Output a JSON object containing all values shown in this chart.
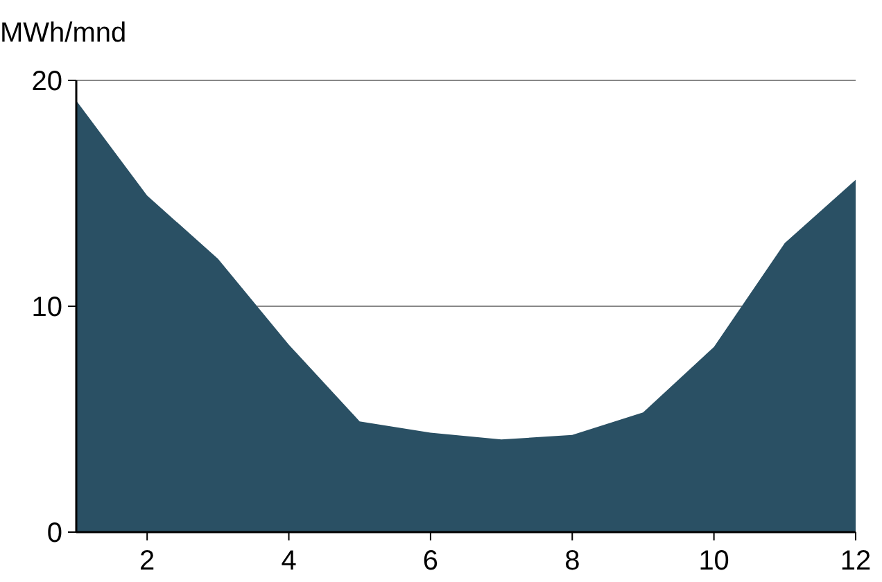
{
  "chart_data": {
    "type": "area",
    "ylabel": "MWh/mnd",
    "x": [
      1,
      2,
      3,
      4,
      5,
      6,
      7,
      8,
      9,
      10,
      11,
      12
    ],
    "series": [
      {
        "color": "#2a5064",
        "values": [
          19.1,
          14.9,
          12.1,
          8.3,
          4.9,
          4.4,
          4.1,
          4.3,
          5.3,
          8.2,
          12.8,
          15.6
        ]
      }
    ],
    "xlim": [
      1,
      12
    ],
    "xticks": [
      2,
      4,
      6,
      8,
      10,
      12
    ],
    "ylim": [
      0,
      20
    ],
    "yticks": [
      0,
      10,
      20
    ],
    "grid": "y"
  }
}
